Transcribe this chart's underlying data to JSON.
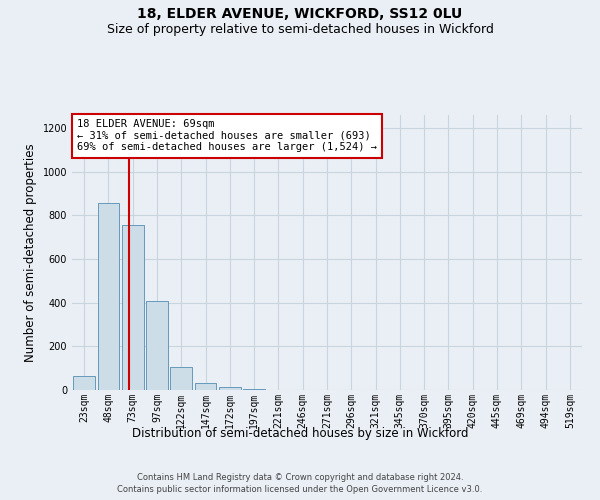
{
  "title": "18, ELDER AVENUE, WICKFORD, SS12 0LU",
  "subtitle": "Size of property relative to semi-detached houses in Wickford",
  "xlabel": "Distribution of semi-detached houses by size in Wickford",
  "ylabel": "Number of semi-detached properties",
  "footnote1": "Contains HM Land Registry data © Crown copyright and database right 2024.",
  "footnote2": "Contains public sector information licensed under the Open Government Licence v3.0.",
  "categories": [
    "23sqm",
    "48sqm",
    "73sqm",
    "97sqm",
    "122sqm",
    "147sqm",
    "172sqm",
    "197sqm",
    "221sqm",
    "246sqm",
    "271sqm",
    "296sqm",
    "321sqm",
    "345sqm",
    "370sqm",
    "395sqm",
    "420sqm",
    "445sqm",
    "469sqm",
    "494sqm",
    "519sqm"
  ],
  "values": [
    65,
    855,
    755,
    410,
    105,
    30,
    15,
    5,
    0,
    0,
    0,
    0,
    0,
    0,
    0,
    0,
    0,
    0,
    0,
    0,
    0
  ],
  "bar_color": "#ccdde8",
  "bar_edge_color": "#6699bb",
  "grid_color": "#c8d4de",
  "background_color": "#eaeff5",
  "ylim": [
    0,
    1260
  ],
  "yticks": [
    0,
    200,
    400,
    600,
    800,
    1000,
    1200
  ],
  "red_line_color": "#cc0000",
  "annotation_text_line1": "18 ELDER AVENUE: 69sqm",
  "annotation_text_line2": "← 31% of semi-detached houses are smaller (693)",
  "annotation_text_line3": "69% of semi-detached houses are larger (1,524) →",
  "annotation_box_color": "white",
  "annotation_box_edge_color": "#cc0000",
  "title_fontsize": 10,
  "subtitle_fontsize": 9,
  "axis_label_fontsize": 8.5,
  "tick_fontsize": 7,
  "annotation_fontsize": 7.5,
  "footnote_fontsize": 6
}
